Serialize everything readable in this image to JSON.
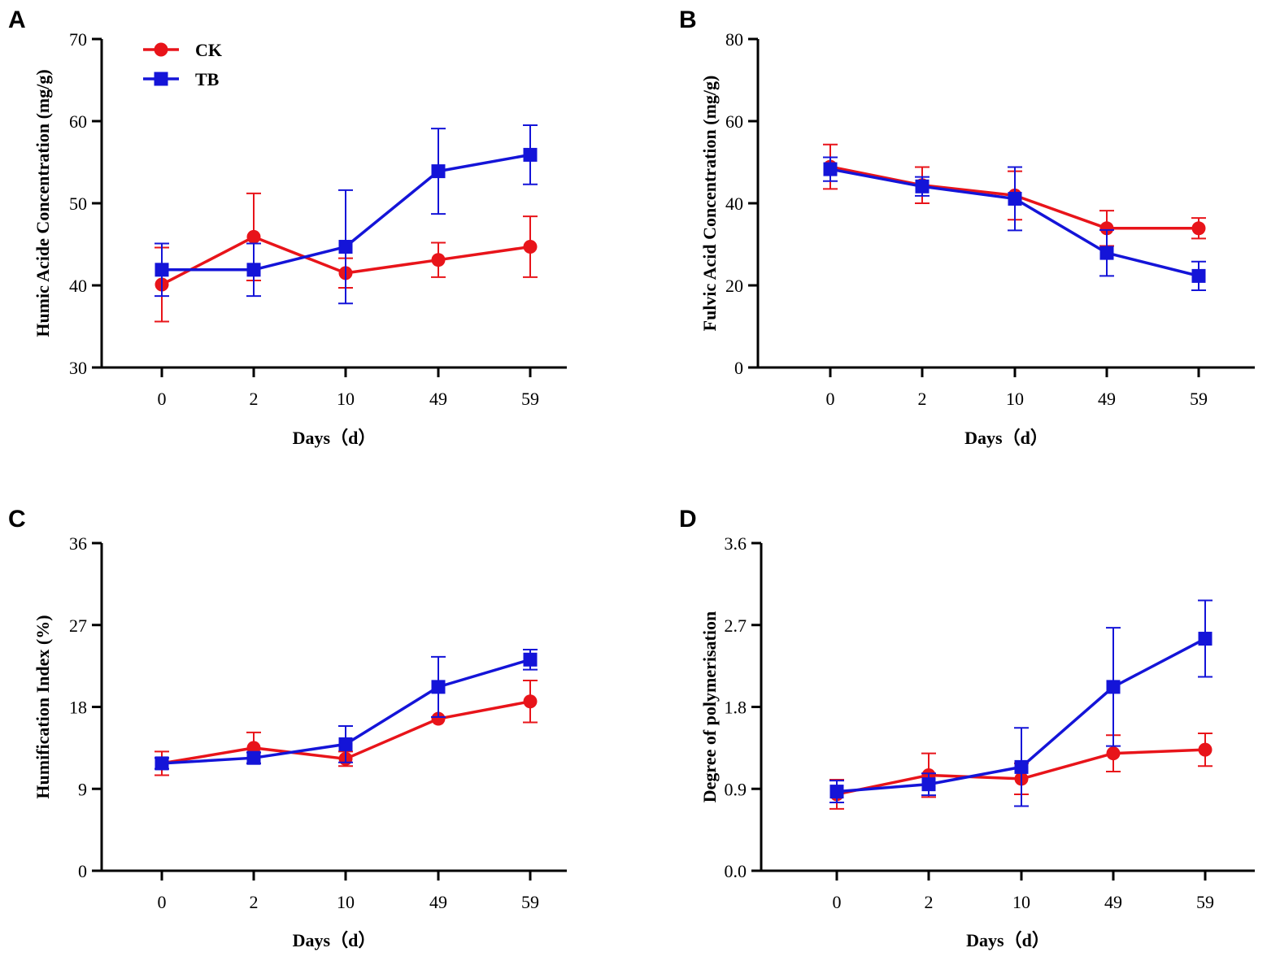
{
  "colors": {
    "CK": "#e8141a",
    "TB": "#1414d8"
  },
  "legend": [
    {
      "name": "CK",
      "marker": "circle"
    },
    {
      "name": "TB",
      "marker": "square"
    }
  ],
  "chart_data": [
    {
      "panel": "A",
      "type": "line",
      "categories": [
        "0",
        "2",
        "10",
        "49",
        "59"
      ],
      "xlabel": "Days（d）",
      "ylabel": "Humic Acide Concentration (mg/g)",
      "ylim": [
        30,
        70
      ],
      "yticks": [
        30,
        40,
        50,
        60,
        70
      ],
      "ytick_labels": [
        "30",
        "40",
        "50",
        "60",
        "70"
      ],
      "legend_position": "top-left",
      "series": [
        {
          "name": "CK",
          "values": [
            40.1,
            45.9,
            41.5,
            43.1,
            44.7
          ],
          "errors": [
            4.5,
            5.3,
            1.8,
            2.1,
            3.7
          ]
        },
        {
          "name": "TB",
          "values": [
            41.9,
            41.9,
            44.7,
            53.9,
            55.9
          ],
          "errors": [
            3.2,
            3.2,
            6.9,
            5.2,
            3.6
          ]
        }
      ]
    },
    {
      "panel": "B",
      "type": "line",
      "categories": [
        "0",
        "2",
        "10",
        "49",
        "59"
      ],
      "xlabel": "Days（d）",
      "ylabel": "Fulvic Acid Concentration (mg/g)",
      "ylim": [
        0,
        80
      ],
      "yticks": [
        0,
        20,
        40,
        60,
        80
      ],
      "ytick_labels": [
        "0",
        "20",
        "40",
        "60",
        "80"
      ],
      "series": [
        {
          "name": "CK",
          "values": [
            48.9,
            44.4,
            41.9,
            33.9,
            33.9
          ],
          "errors": [
            5.4,
            4.4,
            5.9,
            4.3,
            2.5
          ]
        },
        {
          "name": "TB",
          "values": [
            48.3,
            44.1,
            41.1,
            27.9,
            22.3
          ],
          "errors": [
            2.9,
            2.3,
            7.7,
            5.6,
            3.5
          ]
        }
      ]
    },
    {
      "panel": "C",
      "type": "line",
      "categories": [
        "0",
        "2",
        "10",
        "49",
        "59"
      ],
      "xlabel": "Days（d）",
      "ylabel": "Humification Index (%)",
      "ylim": [
        0,
        36
      ],
      "yticks": [
        0,
        9,
        18,
        27,
        36
      ],
      "ytick_labels": [
        "0",
        "9",
        "18",
        "27",
        "36"
      ],
      "series": [
        {
          "name": "CK",
          "values": [
            11.8,
            13.5,
            12.3,
            16.7,
            18.6
          ],
          "errors": [
            1.3,
            1.7,
            0.8,
            0,
            2.3
          ]
        },
        {
          "name": "TB",
          "values": [
            11.8,
            12.4,
            13.9,
            20.2,
            23.2
          ],
          "errors": [
            0.6,
            0.6,
            2.0,
            3.3,
            1.1
          ]
        }
      ]
    },
    {
      "panel": "D",
      "type": "line",
      "categories": [
        "0",
        "2",
        "10",
        "49",
        "59"
      ],
      "xlabel": "Days（d）",
      "ylabel": "Degree of polymerisation",
      "ylim": [
        0,
        3.6
      ],
      "yticks": [
        0,
        0.9,
        1.8,
        2.7,
        3.6
      ],
      "ytick_labels": [
        "0.0",
        "0.9",
        "1.8",
        "2.7",
        "3.6"
      ],
      "series": [
        {
          "name": "CK",
          "values": [
            0.84,
            1.05,
            1.01,
            1.29,
            1.33
          ],
          "errors": [
            0.16,
            0.24,
            0.17,
            0.2,
            0.18
          ]
        },
        {
          "name": "TB",
          "values": [
            0.87,
            0.95,
            1.14,
            2.02,
            2.55
          ],
          "errors": [
            0.12,
            0.12,
            0.43,
            0.65,
            0.42
          ]
        }
      ]
    }
  ]
}
